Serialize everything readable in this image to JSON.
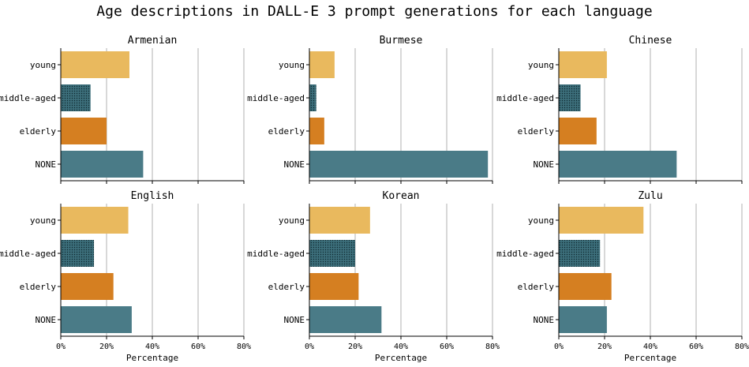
{
  "title": "Age descriptions in DALL-E 3 prompt generations for each language",
  "colors": {
    "young": "#E9B95E",
    "middle-aged": "#3C6E7A",
    "elderly": "#D57F21",
    "NONE": "#4A7B87",
    "grid": "#b0b0b0",
    "axis": "#000000"
  },
  "chart_data": [
    {
      "type": "bar",
      "orientation": "horizontal",
      "title": "Armenian",
      "categories": [
        "young",
        "middle-aged",
        "elderly",
        "NONE"
      ],
      "values": [
        30,
        13,
        20,
        36
      ],
      "xlabel": "",
      "xlim": [
        0,
        80
      ],
      "xticks": [
        "0%",
        "20%",
        "40%",
        "60%",
        "80%"
      ],
      "grid": "x"
    },
    {
      "type": "bar",
      "orientation": "horizontal",
      "title": "Burmese",
      "categories": [
        "young",
        "middle-aged",
        "elderly",
        "NONE"
      ],
      "values": [
        11,
        3,
        6.5,
        78
      ],
      "xlabel": "",
      "xlim": [
        0,
        80
      ],
      "xticks": [
        "0%",
        "20%",
        "40%",
        "60%",
        "80%"
      ],
      "grid": "x"
    },
    {
      "type": "bar",
      "orientation": "horizontal",
      "title": "Chinese",
      "categories": [
        "young",
        "middle-aged",
        "elderly",
        "NONE"
      ],
      "values": [
        21,
        9.5,
        16.5,
        51.5
      ],
      "xlabel": "",
      "xlim": [
        0,
        80
      ],
      "xticks": [
        "0%",
        "20%",
        "40%",
        "60%",
        "80%"
      ],
      "grid": "x"
    },
    {
      "type": "bar",
      "orientation": "horizontal",
      "title": "English",
      "categories": [
        "young",
        "middle-aged",
        "elderly",
        "NONE"
      ],
      "values": [
        29.5,
        14.5,
        23,
        31
      ],
      "xlabel": "Percentage",
      "xlim": [
        0,
        80
      ],
      "xticks": [
        "0%",
        "20%",
        "40%",
        "60%",
        "80%"
      ],
      "grid": "x"
    },
    {
      "type": "bar",
      "orientation": "horizontal",
      "title": "Korean",
      "categories": [
        "young",
        "middle-aged",
        "elderly",
        "NONE"
      ],
      "values": [
        26.5,
        20,
        21.5,
        31.5
      ],
      "xlabel": "Percentage",
      "xlim": [
        0,
        80
      ],
      "xticks": [
        "0%",
        "20%",
        "40%",
        "60%",
        "80%"
      ],
      "grid": "x"
    },
    {
      "type": "bar",
      "orientation": "horizontal",
      "title": "Zulu",
      "categories": [
        "young",
        "middle-aged",
        "elderly",
        "NONE"
      ],
      "values": [
        37,
        18,
        23,
        21
      ],
      "xlabel": "Percentage",
      "xlim": [
        0,
        80
      ],
      "xticks": [
        "0%",
        "20%",
        "40%",
        "60%",
        "80%"
      ],
      "grid": "x"
    }
  ]
}
